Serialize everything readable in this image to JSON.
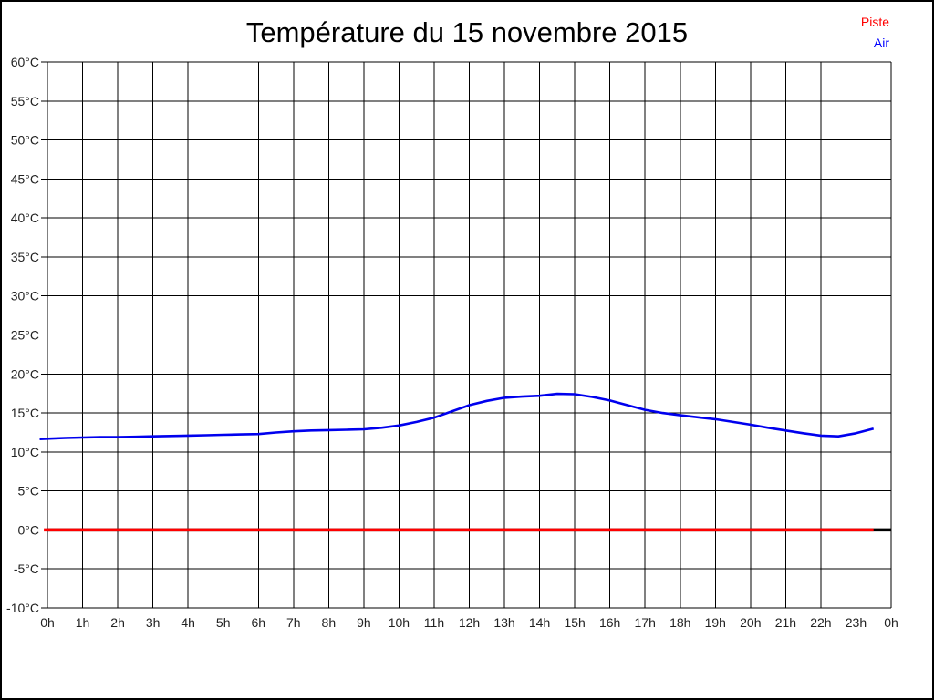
{
  "chart": {
    "title": "Température du 15 novembre 2015"
  },
  "legend": {
    "position": "top-right",
    "items": [
      {
        "label": "Piste",
        "color": "#ff0000"
      },
      {
        "label": "Air",
        "color": "#0000ff"
      }
    ]
  },
  "chart_data": {
    "type": "line",
    "title": "Température du 15 novembre 2015",
    "xlabel": "",
    "ylabel": "",
    "grid": true,
    "grid_color": "#000000",
    "tick_label_color": "#222222",
    "legend_position": "top-right",
    "xlim_hours": [
      0,
      24
    ],
    "x_tick_labels": [
      "0h",
      "1h",
      "2h",
      "3h",
      "4h",
      "5h",
      "6h",
      "7h",
      "8h",
      "9h",
      "10h",
      "11h",
      "12h",
      "13h",
      "14h",
      "15h",
      "16h",
      "17h",
      "18h",
      "19h",
      "20h",
      "21h",
      "22h",
      "23h",
      "0h"
    ],
    "ylim": [
      -10,
      60
    ],
    "y_tick_step": 5,
    "y_tick_suffix": "°C",
    "zero_baseline": {
      "value": 0,
      "color": "#000000",
      "width": 3.5
    },
    "series": [
      {
        "name": "Piste",
        "color": "#ff0000",
        "width": 3.5,
        "points": [
          [
            -0.1,
            0.0
          ],
          [
            23.5,
            0.0
          ]
        ]
      },
      {
        "name": "Air",
        "color": "#0000ee",
        "width": 2.6,
        "points": [
          [
            -0.22,
            11.65
          ],
          [
            0,
            11.7
          ],
          [
            0.5,
            11.8
          ],
          [
            1,
            11.85
          ],
          [
            1.5,
            11.9
          ],
          [
            2,
            11.9
          ],
          [
            2.5,
            11.95
          ],
          [
            3,
            12.0
          ],
          [
            3.5,
            12.05
          ],
          [
            4,
            12.1
          ],
          [
            4.5,
            12.15
          ],
          [
            5,
            12.2
          ],
          [
            5.5,
            12.25
          ],
          [
            6,
            12.3
          ],
          [
            6.5,
            12.5
          ],
          [
            7,
            12.65
          ],
          [
            7.5,
            12.75
          ],
          [
            8,
            12.8
          ],
          [
            8.5,
            12.85
          ],
          [
            9,
            12.9
          ],
          [
            9.5,
            13.1
          ],
          [
            10,
            13.4
          ],
          [
            10.5,
            13.85
          ],
          [
            11,
            14.4
          ],
          [
            11.5,
            15.2
          ],
          [
            12,
            16.0
          ],
          [
            12.5,
            16.55
          ],
          [
            13,
            16.95
          ],
          [
            13.5,
            17.1
          ],
          [
            14,
            17.2
          ],
          [
            14.5,
            17.45
          ],
          [
            15,
            17.4
          ],
          [
            15.5,
            17.05
          ],
          [
            16,
            16.6
          ],
          [
            16.5,
            16.0
          ],
          [
            17,
            15.4
          ],
          [
            17.5,
            15.0
          ],
          [
            18,
            14.7
          ],
          [
            18.5,
            14.45
          ],
          [
            19,
            14.2
          ],
          [
            19.5,
            13.85
          ],
          [
            20,
            13.5
          ],
          [
            20.5,
            13.1
          ],
          [
            21,
            12.75
          ],
          [
            21.5,
            12.4
          ],
          [
            22,
            12.1
          ],
          [
            22.5,
            12.0
          ],
          [
            23,
            12.4
          ],
          [
            23.5,
            13.0
          ]
        ]
      }
    ]
  }
}
